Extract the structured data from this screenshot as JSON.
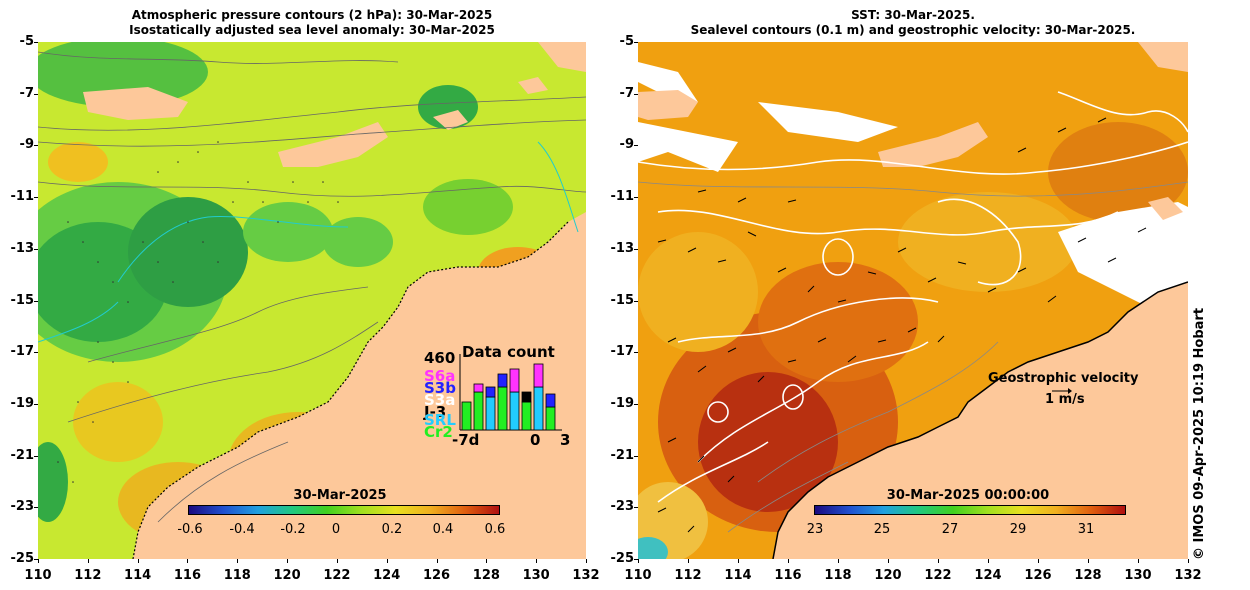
{
  "left": {
    "title_line1": "Atmospheric pressure contours (2 hPa): 30-Mar-2025",
    "title_line2": "Isostatically adjusted sea level anomaly: 30-Mar-2025",
    "colorbar_title": "30-Mar-2025",
    "colorbar_ticks": [
      "-0.6",
      "-0.4",
      "-0.2",
      "0",
      "0.2",
      "0.4",
      "0.6"
    ],
    "data_count": {
      "max_label": "460",
      "title": "Data count",
      "satellites": [
        {
          "name": "S6a",
          "color": "#ff33ff"
        },
        {
          "name": "S3b",
          "color": "#2222ff"
        },
        {
          "name": "S3a",
          "color": "#ffffff"
        },
        {
          "name": "J-3",
          "color": "#000000"
        },
        {
          "name": "SRL",
          "color": "#22ccff"
        },
        {
          "name": "Cr2",
          "color": "#22ee22"
        }
      ],
      "axis_left": "-7d",
      "axis_mid": "0",
      "axis_right": "3"
    }
  },
  "right": {
    "title_line1": "SST: 30-Mar-2025.",
    "title_line2": "Sealevel contours (0.1 m) and geostrophic velocity: 30-Mar-2025.",
    "colorbar_title": "30-Mar-2025 00:00:00",
    "colorbar_ticks": [
      "23",
      "25",
      "27",
      "29",
      "31"
    ],
    "velocity_label": "Geostrophic velocity",
    "velocity_scale": "1 m/s"
  },
  "axes": {
    "y_ticks": [
      "-5",
      "-7",
      "-9",
      "-11",
      "-13",
      "-15",
      "-17",
      "-19",
      "-21",
      "-23",
      "-25"
    ],
    "x_ticks": [
      "110",
      "112",
      "114",
      "116",
      "118",
      "120",
      "122",
      "124",
      "126",
      "128",
      "130",
      "132"
    ]
  },
  "watermark": "© IMOS 09-Apr-2025 10:19 Hobart"
}
